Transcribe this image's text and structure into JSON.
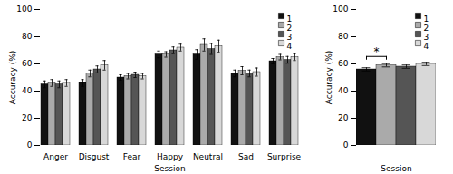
{
  "chart_data": [
    {
      "type": "bar",
      "categories": [
        "Anger",
        "Disgust",
        "Fear",
        "Happy",
        "Neutral",
        "Sad",
        "Surprise"
      ],
      "xlabel": "Session",
      "ylabel": "Accuracy (%)",
      "series": [
        {
          "name": "1",
          "color": "#111111",
          "values": [
            45,
            46,
            50,
            67,
            67,
            53,
            62
          ],
          "errors": [
            2.5,
            2.5,
            2.0,
            2.5,
            3.5,
            2.5,
            2.0
          ]
        },
        {
          "name": "2",
          "color": "#aaaaaa",
          "values": [
            46,
            53,
            51,
            67,
            74,
            55,
            65
          ],
          "errors": [
            2.5,
            2.5,
            2.0,
            2.0,
            4.5,
            3.0,
            2.0
          ]
        },
        {
          "name": "3",
          "color": "#555555",
          "values": [
            45,
            56,
            52,
            70,
            71,
            53,
            63
          ],
          "errors": [
            2.5,
            2.5,
            2.0,
            2.5,
            4.0,
            2.5,
            2.5
          ]
        },
        {
          "name": "4",
          "color": "#d8d8d8",
          "values": [
            46,
            59,
            51,
            72,
            73,
            54,
            65
          ],
          "errors": [
            2.5,
            3.5,
            2.0,
            2.5,
            4.5,
            3.0,
            2.5
          ]
        }
      ],
      "ylim": [
        0,
        100
      ],
      "yticks": [
        0,
        20,
        40,
        60,
        80,
        100
      ],
      "legend": "top right"
    },
    {
      "type": "bar",
      "categories": [
        null
      ],
      "xlabel": "Session",
      "ylabel": "Accuracy (%)",
      "series": [
        {
          "name": "1",
          "color": "#111111",
          "values": [
            56
          ],
          "errors": [
            1.2
          ]
        },
        {
          "name": "2",
          "color": "#aaaaaa",
          "values": [
            59
          ],
          "errors": [
            1.2
          ]
        },
        {
          "name": "3",
          "color": "#555555",
          "values": [
            58
          ],
          "errors": [
            1.2
          ]
        },
        {
          "name": "4",
          "color": "#d8d8d8",
          "values": [
            60
          ],
          "errors": [
            1.2
          ]
        }
      ],
      "ylim": [
        0,
        100
      ],
      "yticks": [
        0,
        20,
        40,
        60,
        80,
        100
      ],
      "legend": "top right",
      "tick_labels": "y",
      "annotations": [
        {
          "text": "*",
          "y": 65.5,
          "from": "1",
          "to": "2"
        }
      ]
    }
  ]
}
